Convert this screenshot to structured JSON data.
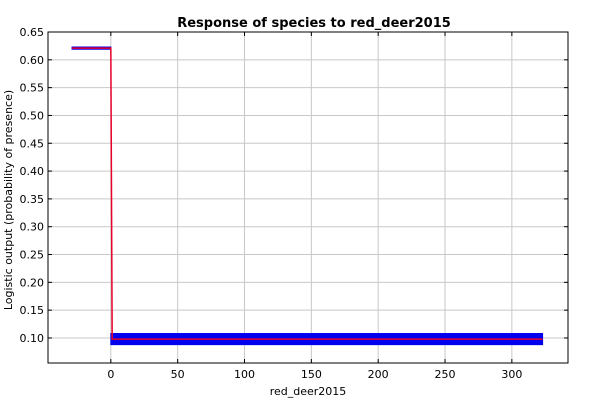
{
  "chart_data": {
    "type": "line",
    "title": "Response of species to red_deer2015",
    "xlabel": "red_deer2015",
    "ylabel": "Logistic output (probability of presence)",
    "xlim": [
      -47,
      342
    ],
    "ylim": [
      0.055,
      0.65
    ],
    "xticks": [
      0,
      50,
      100,
      150,
      200,
      250,
      300
    ],
    "xtick_labels": [
      "0",
      "50",
      "100",
      "150",
      "200",
      "250",
      "300"
    ],
    "yticks": [
      0.1,
      0.15,
      0.2,
      0.25,
      0.3,
      0.35,
      0.4,
      0.45,
      0.5,
      0.55,
      0.6,
      0.65
    ],
    "ytick_labels": [
      "0.10",
      "0.15",
      "0.20",
      "0.25",
      "0.30",
      "0.35",
      "0.40",
      "0.45",
      "0.50",
      "0.55",
      "0.60",
      "0.65"
    ],
    "grid": true,
    "series": [
      {
        "kind": "band",
        "color": "#0000ee",
        "x": [
          -29,
          0,
          0.01,
          323
        ],
        "upper": [
          0.623,
          0.623,
          0.108,
          0.108
        ],
        "lower": [
          0.619,
          0.619,
          0.088,
          0.088
        ]
      },
      {
        "kind": "line",
        "color": "#e8002a",
        "x": [
          -29,
          0,
          1,
          323
        ],
        "y": [
          0.621,
          0.621,
          0.098,
          0.098
        ]
      }
    ]
  }
}
